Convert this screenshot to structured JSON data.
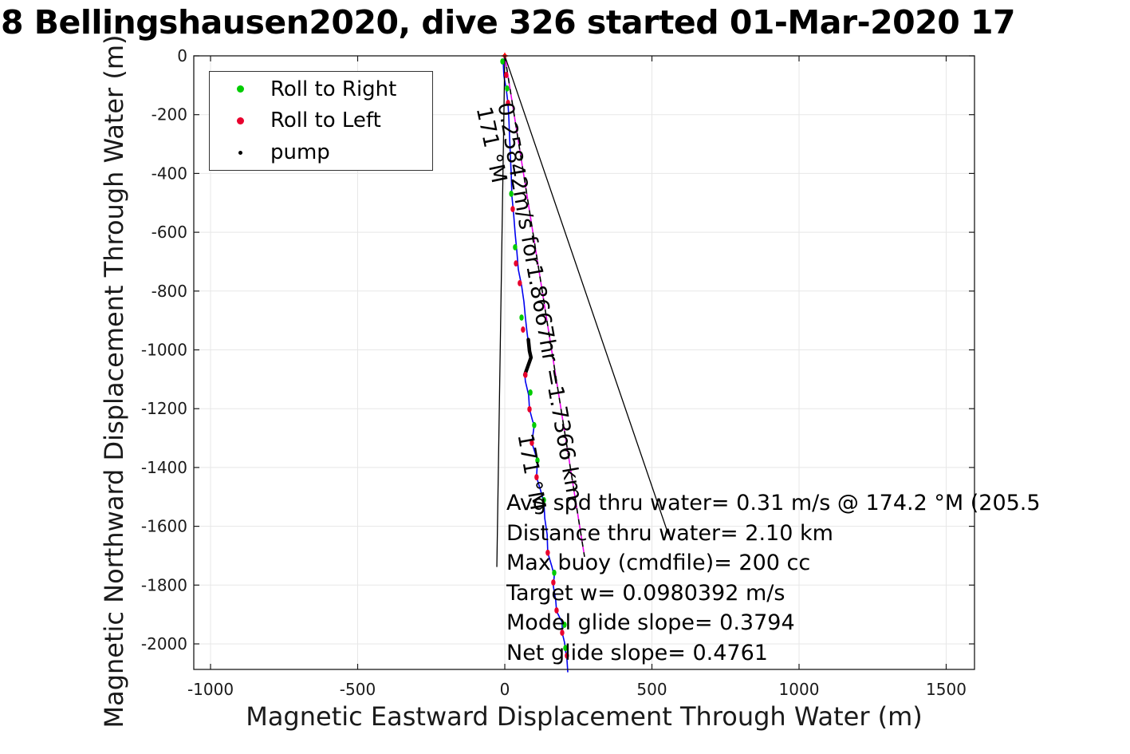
{
  "title": "8 Bellingshausen2020, dive 326 started 01-Mar-2020 17",
  "chart_data": {
    "type": "line",
    "title": "8 Bellingshausen2020, dive 326 started 01-Mar-2020 17",
    "xlabel": "Magnetic Eastward Displacement Through Water (m)",
    "ylabel": "Magnetic Northward Displacement Through Water (m)",
    "xlim": [
      -1057,
      1596
    ],
    "ylim": [
      -2087,
      0
    ],
    "xticks": [
      -1000,
      -500,
      0,
      500,
      1000,
      1500
    ],
    "yticks": [
      0,
      -200,
      -400,
      -600,
      -800,
      -1000,
      -1200,
      -1400,
      -1600,
      -1800,
      -2000
    ],
    "grid": true,
    "colors": {
      "trajectory": "#0000f0",
      "roll_right": "#00cc00",
      "roll_left": "#e8002d",
      "pump": "#000000",
      "track_magenta": "#ee00ee",
      "bearing_lines": "#000000",
      "start_marker": "#ff0000",
      "grid": "#e7e7e7",
      "axis": "#191919"
    },
    "legend": {
      "position": "northwest",
      "entries": [
        {
          "label": "Roll to Right",
          "color": "#00cc00"
        },
        {
          "label": "Roll to Left",
          "color": "#e8002d"
        },
        {
          "label": "pump",
          "color": "#000000"
        }
      ]
    },
    "series": [
      {
        "name": "trajectory",
        "type": "line",
        "color": "#0000f0",
        "width": 1.6,
        "points": [
          [
            0,
            0
          ],
          [
            -5,
            -27
          ],
          [
            -3,
            -68
          ],
          [
            5,
            -114
          ],
          [
            11,
            -163
          ],
          [
            14,
            -217
          ],
          [
            16,
            -271
          ],
          [
            19,
            -339
          ],
          [
            22,
            -407
          ],
          [
            24,
            -475
          ],
          [
            30,
            -537
          ],
          [
            35,
            -602
          ],
          [
            41,
            -665
          ],
          [
            46,
            -727
          ],
          [
            57,
            -781
          ],
          [
            65,
            -836
          ],
          [
            70,
            -890
          ],
          [
            76,
            -944
          ],
          [
            84,
            -1004
          ],
          [
            89,
            -1026
          ],
          [
            68,
            -1085
          ],
          [
            70,
            -1107
          ],
          [
            81,
            -1153
          ],
          [
            84,
            -1202
          ],
          [
            95,
            -1243
          ],
          [
            100,
            -1256
          ],
          [
            92,
            -1316
          ],
          [
            111,
            -1376
          ],
          [
            108,
            -1433
          ],
          [
            122,
            -1479
          ],
          [
            133,
            -1520
          ],
          [
            136,
            -1574
          ],
          [
            144,
            -1628
          ],
          [
            146,
            -1690
          ],
          [
            160,
            -1737
          ],
          [
            168,
            -1769
          ],
          [
            165,
            -1804
          ],
          [
            173,
            -1851
          ],
          [
            176,
            -1889
          ],
          [
            195,
            -1927
          ],
          [
            195,
            -1962
          ],
          [
            203,
            -1995
          ],
          [
            206,
            -2022
          ],
          [
            211,
            -2049
          ],
          [
            214,
            -2095
          ]
        ]
      },
      {
        "name": "pump-segment",
        "type": "line",
        "color": "#000000",
        "width": 4.5,
        "points": [
          [
            80,
            -965
          ],
          [
            84,
            -1004
          ],
          [
            89,
            -1026
          ],
          [
            68,
            -1085
          ]
        ]
      },
      {
        "name": "bearing-fan-left",
        "type": "line",
        "color": "#000000",
        "width": 1.3,
        "points": [
          [
            0,
            0
          ],
          [
            -27,
            -1737
          ]
        ]
      },
      {
        "name": "bearing-fan-right",
        "type": "line",
        "color": "#000000",
        "width": 1.3,
        "points": [
          [
            0,
            0
          ],
          [
            556,
            -1628
          ]
        ]
      },
      {
        "name": "track-dashed-line",
        "type": "dashed-line",
        "color": "#ee00ee",
        "color2": "#000000",
        "width": 1.6,
        "points": [
          [
            0,
            0
          ],
          [
            271,
            -1704
          ]
        ]
      },
      {
        "name": "roll-right-markers",
        "type": "scatter",
        "color": "#00cc00",
        "points": [
          [
            -8,
            -19
          ],
          [
            8,
            -111
          ],
          [
            22,
            -469
          ],
          [
            35,
            -651
          ],
          [
            57,
            -890
          ],
          [
            87,
            -1145
          ],
          [
            100,
            -1256
          ],
          [
            111,
            -1376
          ],
          [
            133,
            -1511
          ],
          [
            168,
            -1758
          ],
          [
            203,
            -1935
          ],
          [
            206,
            -2014
          ]
        ]
      },
      {
        "name": "roll-left-markers",
        "type": "scatter",
        "color": "#e8002d",
        "points": [
          [
            5,
            -65
          ],
          [
            11,
            -160
          ],
          [
            27,
            -521
          ],
          [
            38,
            -706
          ],
          [
            51,
            -773
          ],
          [
            62,
            -931
          ],
          [
            70,
            -1085
          ],
          [
            84,
            -1202
          ],
          [
            92,
            -1316
          ],
          [
            108,
            -1433
          ],
          [
            146,
            -1690
          ],
          [
            165,
            -1791
          ],
          [
            176,
            -1886
          ],
          [
            195,
            -1962
          ],
          [
            211,
            -2040
          ]
        ]
      }
    ],
    "start_marker": {
      "x": 0,
      "y": 0,
      "color": "#ff0000"
    },
    "rotated_labels": [
      {
        "text": "0.25842m/s for1.8667hr =1.7366 km",
        "angle_deg": 80
      },
      {
        "text": "171 °M",
        "angle_deg": 78
      },
      {
        "text": "171 °M",
        "angle_deg": 80
      }
    ],
    "annotation_lines": [
      "Avg spd thru water=  0.31 m/s @ 174.2 °M (205.5",
      "Distance thru water=  2.10 km",
      "Max buoy (cmdfile)= 200 cc",
      "Target w= 0.0980392 m/s",
      "Model glide slope= 0.3794",
      "Net glide slope= 0.4761"
    ]
  }
}
